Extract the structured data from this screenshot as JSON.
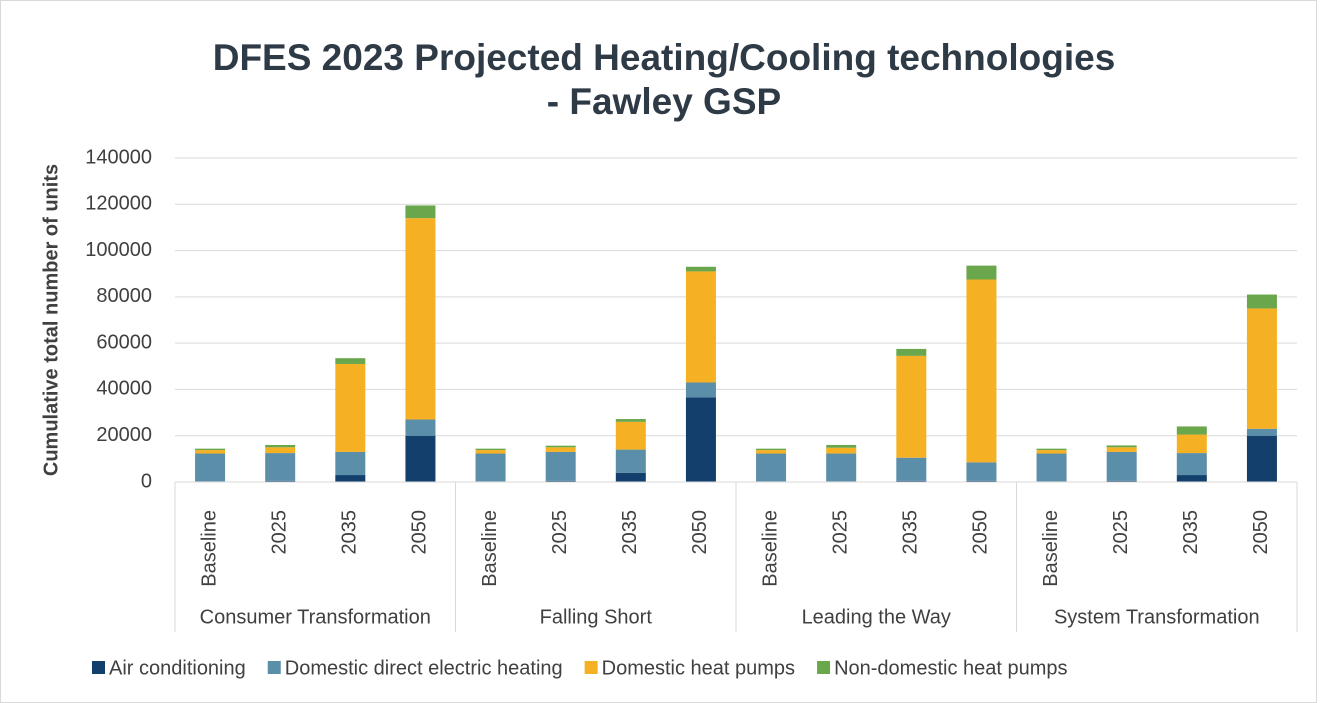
{
  "chart_data": {
    "type": "stacked_bar",
    "title": [
      "DFES 2023 Projected Heating/Cooling technologies",
      "- Fawley GSP"
    ],
    "y_label": "Cumulative total number of units",
    "categories": [
      "Baseline",
      "2025",
      "2035",
      "2050",
      "Baseline",
      "2025",
      "2035",
      "2050",
      "Baseline",
      "2025",
      "2035",
      "2050",
      "Baseline",
      "2025",
      "2035",
      "2050"
    ],
    "groups": [
      "Consumer Transformation",
      "Falling Short",
      "Leading the Way",
      "System Transformation"
    ],
    "series": [
      {
        "name": "Air conditioning",
        "color": "#123f6b",
        "values": [
          300,
          500,
          3000,
          20000,
          300,
          500,
          4000,
          36500,
          300,
          300,
          500,
          500,
          300,
          500,
          3000,
          20000
        ]
      },
      {
        "name": "Domestic direct electric heating",
        "color": "#5b8ea8",
        "values": [
          12000,
          12000,
          10000,
          7000,
          12000,
          12500,
          10000,
          6500,
          12000,
          12000,
          10000,
          8000,
          12000,
          12500,
          9500,
          3000
        ]
      },
      {
        "name": "Domestic heat pumps",
        "color": "#f5b123",
        "values": [
          1500,
          2500,
          38000,
          87000,
          1500,
          2000,
          12000,
          48000,
          1500,
          2500,
          44000,
          79000,
          1500,
          2000,
          8000,
          52000
        ]
      },
      {
        "name": "Non-domestic heat pumps",
        "color": "#6aa64c",
        "values": [
          600,
          1000,
          2500,
          5500,
          600,
          700,
          1200,
          2000,
          600,
          1200,
          3000,
          6000,
          600,
          800,
          3500,
          6000
        ]
      }
    ],
    "ylim": [
      0,
      140000
    ],
    "yticks": [
      0,
      20000,
      40000,
      60000,
      80000,
      100000,
      120000,
      140000
    ],
    "grid": true,
    "legend": "bottom"
  }
}
